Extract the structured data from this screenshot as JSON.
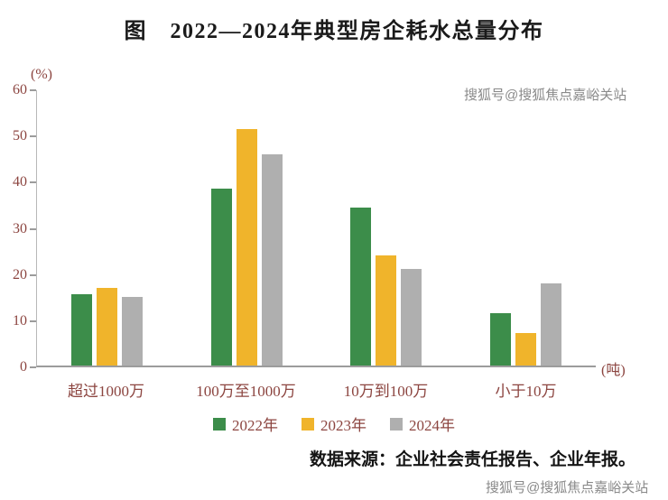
{
  "chart_data": {
    "type": "bar",
    "title": "图　2022—2024年典型房企耗水总量分布",
    "categories": [
      "超过1000万",
      "100万至1000万",
      "10万到100万",
      "小于10万"
    ],
    "series": [
      {
        "name": "2022年",
        "color": "#3C8D4A",
        "values": [
          15.5,
          38.5,
          34.5,
          11.5
        ]
      },
      {
        "name": "2023年",
        "color": "#F0B42B",
        "values": [
          17,
          51.5,
          24,
          7
        ]
      },
      {
        "name": "2024年",
        "color": "#AFAFAF",
        "values": [
          15,
          46,
          21,
          18
        ]
      }
    ],
    "y_axis": {
      "unit_label": "(%)",
      "ticks": [
        0,
        10,
        20,
        30,
        40,
        50,
        60
      ],
      "max": 60
    },
    "x_axis": {
      "unit_label": "(吨)"
    },
    "ylim": [
      0,
      60
    ],
    "grid": false,
    "legend_position": "bottom"
  },
  "source_note": "数据来源：企业社会责任报告、企业年报。",
  "watermarks": {
    "top_right": "搜狐号@搜狐焦点嘉峪关站",
    "bottom_right": "搜狐号@搜狐焦点嘉峪关站"
  },
  "colors": {
    "axis_text": "#8C4540",
    "axis_line": "#9C9C9C",
    "title_text": "#1A1A1A"
  }
}
